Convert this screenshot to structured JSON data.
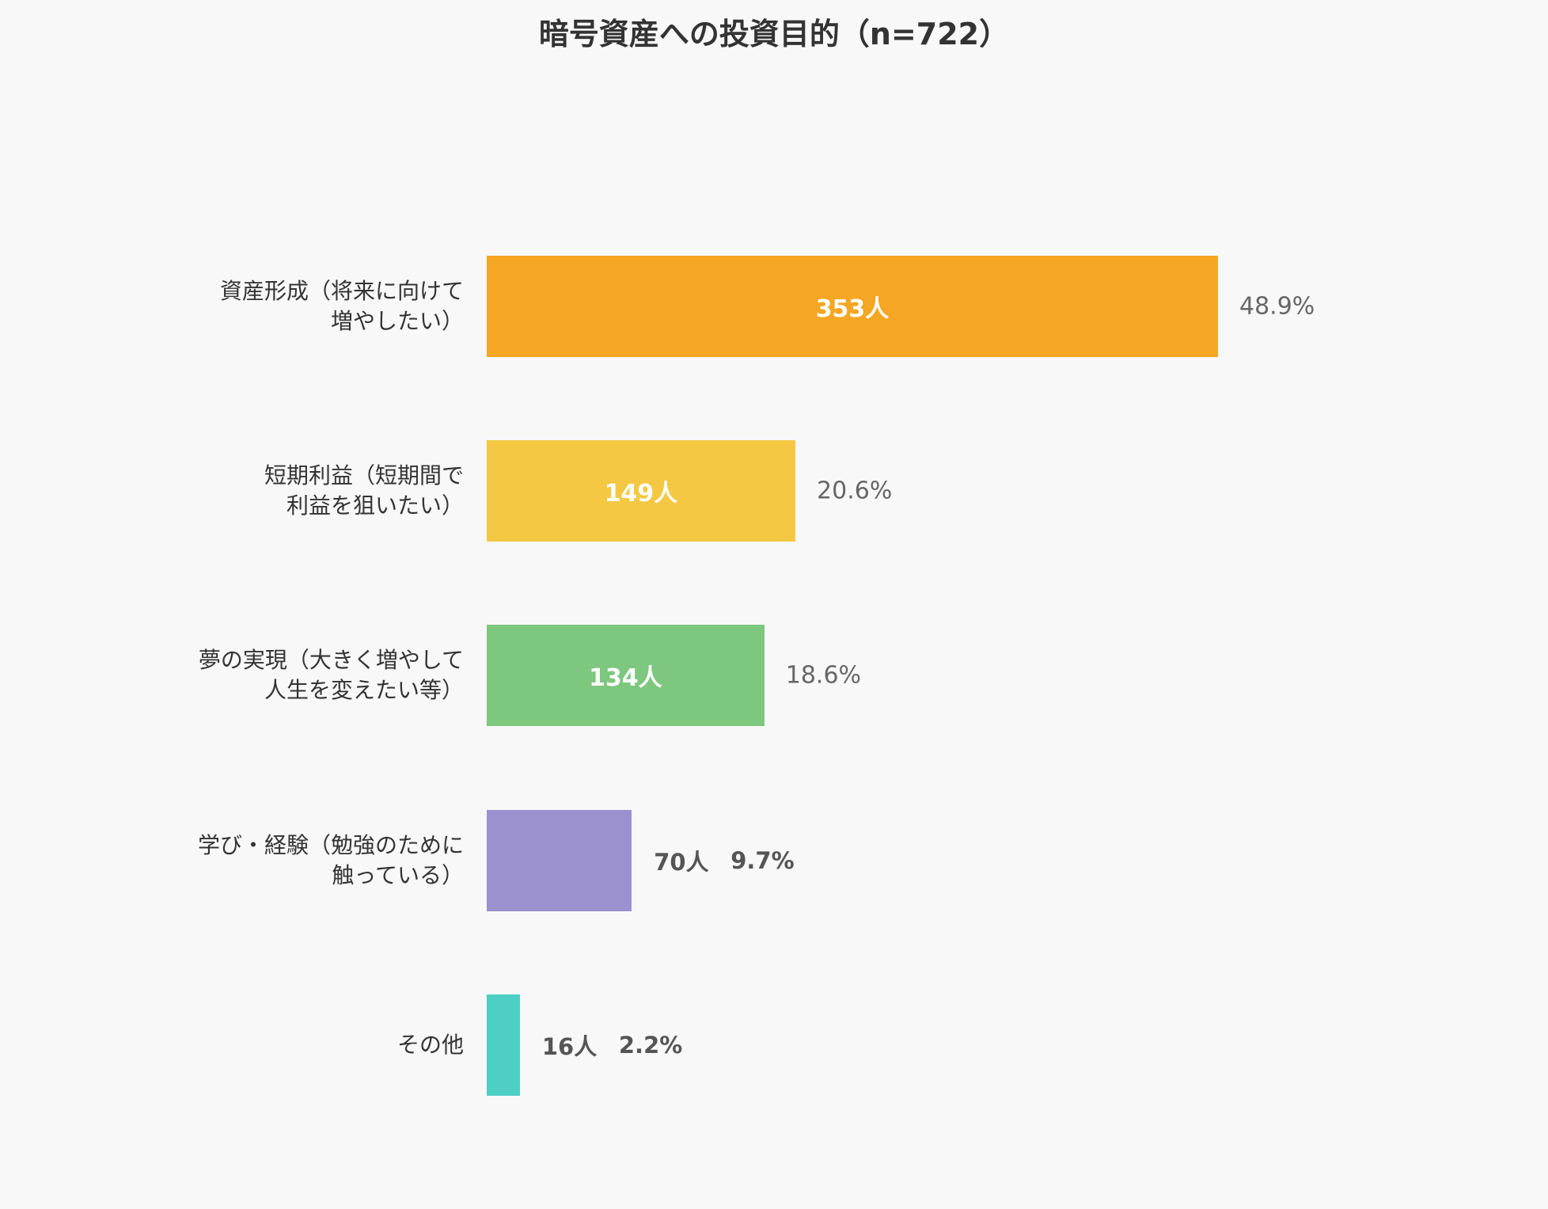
{
  "chart_data": {
    "type": "bar",
    "orientation": "horizontal",
    "title": "暗号資産への投資目的（n=722）",
    "categories": [
      [
        "資産形成（将来に向けて",
        "増やしたい）"
      ],
      [
        "短期利益（短期間で",
        "利益を狙いたい）"
      ],
      [
        "夢の実現（大きく増やして",
        "人生を変えたい等）"
      ],
      [
        "学び・経験（勉強のために",
        "触っている）"
      ],
      [
        "その他"
      ]
    ],
    "values": [
      353,
      149,
      134,
      70,
      16
    ],
    "count_labels": [
      "353人",
      "149人",
      "134人",
      "70人",
      "16人"
    ],
    "percent_labels": [
      "48.9%",
      "20.6%",
      "18.6%",
      "9.7%",
      "2.2%"
    ],
    "percents": [
      48.9,
      20.6,
      18.6,
      9.7,
      2.2
    ],
    "colors": [
      "#f5a623",
      "#f4c842",
      "#7dc77f",
      "#9b91ce",
      "#4ecfc4"
    ],
    "xlim": [
      0,
      353
    ],
    "grid": false,
    "legend": "none"
  }
}
